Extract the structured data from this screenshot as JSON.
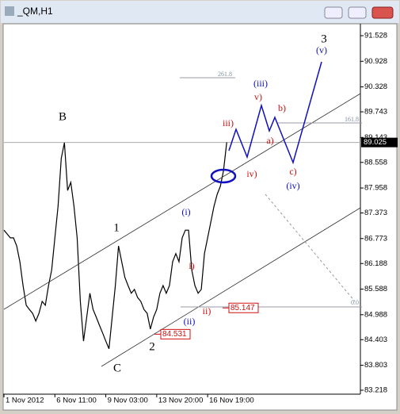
{
  "window_title": "_QM,H1",
  "chart_data": {
    "type": "line",
    "color": "#000000",
    "values": [
      86.97,
      86.88,
      86.79,
      86.79,
      86.6,
      86.23,
      85.67,
      85.21,
      85.11,
      85.02,
      84.84,
      85.02,
      85.3,
      85.21,
      85.67,
      86.04,
      86.79,
      87.53,
      88.65,
      89.02,
      87.9,
      88.09,
      87.53,
      86.79,
      85.3,
      84.37,
      84.93,
      85.49,
      85.11,
      84.93,
      84.74,
      84.56,
      84.37,
      84.19,
      84.93,
      85.67,
      86.6,
      86.23,
      85.86,
      85.67,
      85.49,
      85.58,
      85.39,
      85.3,
      85.11,
      85.02,
      84.65,
      84.93,
      85.11,
      85.49,
      85.67,
      85.49,
      85.67,
      86.23,
      86.42,
      86.23,
      86.79,
      86.97,
      86.97,
      86.04,
      85.67,
      85.49,
      85.58,
      86.42,
      86.79,
      87.16,
      87.53,
      87.81,
      88.0,
      88.37,
      89.03
    ],
    "xlim": [
      0,
      112
    ],
    "xticks": [
      {
        "value": 0,
        "label": "1 Nov 2012"
      },
      {
        "value": 16,
        "label": "6 Nov 11:00"
      },
      {
        "value": 32,
        "label": "9 Nov 03:00"
      },
      {
        "value": 48,
        "label": "13 Nov 20:00"
      },
      {
        "value": 64,
        "label": "16 Nov 19:00"
      }
    ],
    "ylim": [
      83.125,
      91.807
    ],
    "yticks": [
      91.528,
      90.928,
      90.328,
      89.743,
      89.143,
      88.558,
      87.958,
      87.373,
      86.773,
      86.188,
      85.588,
      84.988,
      84.403,
      83.803,
      83.218
    ],
    "last_price": 89.025,
    "price_labels": [
      84.531,
      85.147
    ],
    "annotations": [
      {
        "text": "B",
        "color": "#000000"
      },
      {
        "text": "1",
        "color": "#000000"
      },
      {
        "text": "C",
        "color": "#000000"
      },
      {
        "text": "2",
        "color": "#000000"
      },
      {
        "text": "3",
        "color": "#000000"
      },
      {
        "text": "(i)",
        "color": "#1010c0"
      },
      {
        "text": "(ii)",
        "color": "#1010c0"
      },
      {
        "text": "(iii)",
        "color": "#1010c0"
      },
      {
        "text": "(iv)",
        "color": "#1010c0"
      },
      {
        "text": "(v)",
        "color": "#1010c0"
      },
      {
        "text": "i)",
        "color": "#d01010"
      },
      {
        "text": "ii)",
        "color": "#d01010"
      },
      {
        "text": "iii)",
        "color": "#d01010"
      },
      {
        "text": "iv)",
        "color": "#d01010"
      },
      {
        "text": "v)",
        "color": "#d01010"
      },
      {
        "text": "a)",
        "color": "#d01010"
      },
      {
        "text": "b)",
        "color": "#d01010"
      },
      {
        "text": "c)",
        "color": "#d01010"
      },
      {
        "text": "261.8",
        "color": "#8090a0"
      },
      {
        "text": "161.8",
        "color": "#8090a0"
      },
      {
        "text": "0.0",
        "color": "#8090a0"
      }
    ]
  }
}
